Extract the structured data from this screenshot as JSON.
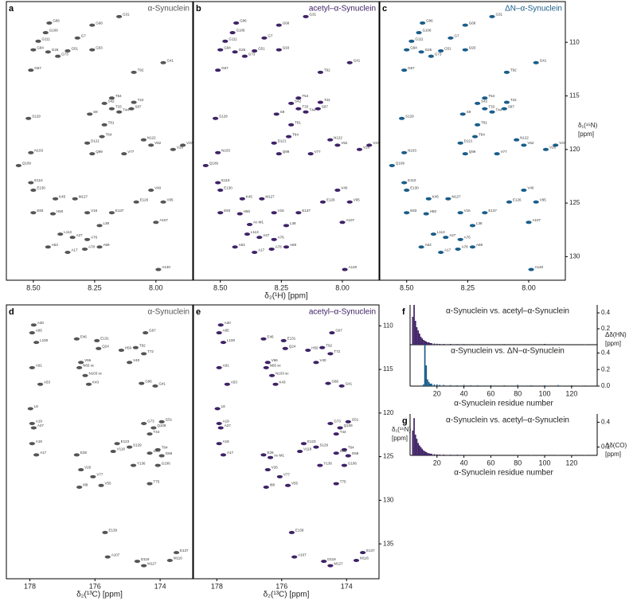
{
  "chart_data": [
    {
      "type": "scatter",
      "panel": "a",
      "title": "α-Synuclein",
      "color": "#555555",
      "xlim": [
        8.61,
        7.85
      ],
      "ylim": [
        106.2,
        132.2
      ],
      "xticks": [
        {
          "value": 8.5,
          "label": "8.50"
        },
        {
          "value": 8.25,
          "label": "8.25"
        },
        {
          "value": 8,
          "label": "8.00"
        }
      ],
      "labels": [
        "G86",
        "G106",
        "G7",
        "G111",
        "G84",
        "G25",
        "G51",
        "G73",
        "G93",
        "G68",
        "G31",
        "G67",
        "T92",
        "G41",
        "T54",
        "T22",
        "S42",
        "T33",
        "T44",
        "S87",
        "S129",
        "S9",
        "T81",
        "T64",
        "N122",
        "V52",
        "V37",
        "V26",
        "D121",
        "N103",
        "Q99",
        "V77",
        "Q109",
        "E110",
        "E130",
        "K45",
        "M127",
        "V40",
        "E126",
        "V95",
        "E83",
        "H50",
        "E137",
        "V16",
        "A107",
        "L113",
        "A27",
        "A76",
        "L38",
        "A53",
        "A17",
        "A78",
        "A69",
        "A140"
      ],
      "x": [
        8.435,
        8.45,
        8.32,
        8.48,
        8.5,
        8.44,
        8.36,
        8.4,
        8.26,
        8.26,
        8.15,
        8.51,
        8.09,
        7.97,
        8.18,
        8.09,
        8.21,
        8.18,
        8.15,
        8.1,
        8.52,
        8.27,
        8.21,
        8.22,
        8.05,
        8.02,
        7.89,
        7.93,
        8.28,
        8.51,
        8.26,
        8.13,
        8.56,
        8.51,
        8.5,
        8.41,
        8.33,
        8.02,
        8.08,
        7.97,
        8.5,
        8.42,
        8.18,
        8.28,
        8.0,
        8.39,
        8.34,
        8.28,
        8.23,
        8.44,
        8.36,
        8.29,
        8.23,
        7.99
      ],
      "values": [
        108.2,
        109.1,
        109.6,
        109.9,
        110.7,
        110.9,
        110.8,
        111.3,
        110.7,
        108.4,
        107.6,
        112.6,
        112.8,
        111.9,
        115.2,
        115.6,
        115.7,
        116.2,
        116.5,
        116.2,
        117.1,
        116.7,
        117.7,
        118.8,
        119.1,
        119.6,
        119.6,
        120.0,
        119.4,
        120.3,
        120.4,
        120.4,
        121.5,
        123.1,
        123.8,
        124.6,
        124.6,
        123.8,
        124.9,
        124.9,
        125.9,
        126.0,
        125.9,
        125.9,
        126.8,
        127.9,
        128.2,
        128.4,
        127.1,
        129.1,
        129.6,
        129.3,
        129.1,
        131.2
      ]
    },
    {
      "type": "scatter",
      "panel": "b",
      "title": "acetyl–α-Synuclein",
      "color": "#3f2266",
      "xlim": [
        8.61,
        7.85
      ],
      "ylim": [
        106.2,
        132.2
      ],
      "xlabel": "δ₂(¹H) [ppm]",
      "xticks": [
        {
          "value": 8.5,
          "label": "8.50"
        },
        {
          "value": 8.25,
          "label": "8.25"
        },
        {
          "value": 8,
          "label": "8.00"
        }
      ],
      "labels": [
        "G86",
        "G106",
        "G7",
        "G111",
        "G84",
        "G25",
        "G51",
        "G73",
        "G93",
        "G68",
        "G31",
        "G67",
        "T92",
        "G41",
        "T54",
        "T22",
        "S42",
        "T33",
        "T44",
        "S87",
        "S129",
        "S9",
        "T81",
        "T64",
        "N122",
        "V52",
        "V37",
        "V26",
        "D121",
        "N103",
        "Q99",
        "V77",
        "Q109",
        "E110",
        "E130",
        "K45",
        "M127",
        "V40",
        "E126",
        "V95",
        "E83",
        "H50",
        "E137",
        "V16",
        "A107",
        "L113",
        "A27",
        "A76",
        "L38",
        "A53",
        "A17",
        "A78",
        "A69",
        "A140",
        "Ac-M1"
      ],
      "x": [
        8.435,
        8.45,
        8.32,
        8.48,
        8.5,
        8.44,
        8.36,
        8.4,
        8.26,
        8.26,
        8.15,
        8.51,
        8.09,
        7.97,
        8.18,
        8.09,
        8.21,
        8.18,
        8.15,
        8.1,
        8.52,
        8.27,
        8.21,
        8.22,
        8.05,
        8.02,
        7.89,
        7.93,
        8.28,
        8.51,
        8.26,
        8.13,
        8.56,
        8.51,
        8.5,
        8.41,
        8.33,
        8.02,
        8.08,
        7.97,
        8.5,
        8.42,
        8.18,
        8.28,
        8.0,
        8.39,
        8.34,
        8.28,
        8.23,
        8.44,
        8.36,
        8.29,
        8.23,
        7.99,
        8.38
      ],
      "values": [
        108.2,
        109.1,
        109.6,
        109.9,
        110.7,
        110.9,
        110.8,
        111.3,
        110.7,
        108.4,
        107.6,
        112.6,
        112.8,
        111.9,
        115.2,
        115.6,
        115.7,
        116.2,
        116.5,
        116.2,
        117.1,
        116.7,
        117.7,
        118.8,
        119.1,
        119.6,
        119.6,
        120.0,
        119.4,
        120.3,
        120.4,
        120.4,
        121.5,
        123.1,
        123.8,
        124.6,
        124.6,
        123.8,
        124.9,
        124.9,
        125.9,
        126.0,
        125.9,
        125.9,
        126.8,
        127.9,
        128.2,
        128.4,
        127.1,
        129.1,
        129.6,
        129.3,
        129.1,
        131.2,
        127.0
      ]
    },
    {
      "type": "scatter",
      "panel": "c",
      "title": "ΔN–α-Synuclein",
      "color": "#1a5d8a",
      "xlim": [
        8.61,
        7.85
      ],
      "ylim": [
        106.2,
        132.2
      ],
      "ylabel": [
        "δ₁(¹⁵N)",
        "[ppm]"
      ],
      "xticks": [
        {
          "value": 8.5,
          "label": "8.50"
        },
        {
          "value": 8.25,
          "label": "8.25"
        },
        {
          "value": 8,
          "label": "8.00"
        }
      ],
      "yticks": [
        110,
        115,
        120,
        125,
        130
      ],
      "labels": [
        "G86",
        "G106",
        "G7",
        "G111",
        "G84",
        "G25",
        "G51",
        "G73",
        "G93",
        "G68",
        "G31",
        "G67",
        "T92",
        "G41",
        "T54",
        "T22",
        "S42",
        "T33",
        "T44",
        "S87",
        "S129",
        "S9",
        "T81",
        "T64",
        "N122",
        "V52",
        "V37",
        "V26",
        "D121",
        "N103",
        "Q99",
        "V77",
        "Q109",
        "E110",
        "E130",
        "K45",
        "M127",
        "V40",
        "E126",
        "V95",
        "E83",
        "H50",
        "E137",
        "V16",
        "A107",
        "L113",
        "A27",
        "A76",
        "L38",
        "A53",
        "A17",
        "A78",
        "A69",
        "A140"
      ],
      "x": [
        8.435,
        8.45,
        8.32,
        8.48,
        8.5,
        8.44,
        8.36,
        8.4,
        8.26,
        8.26,
        8.15,
        8.51,
        8.09,
        7.97,
        8.18,
        8.09,
        8.21,
        8.18,
        8.15,
        8.1,
        8.52,
        8.27,
        8.21,
        8.22,
        8.05,
        8.02,
        7.89,
        7.93,
        8.28,
        8.51,
        8.26,
        8.13,
        8.56,
        8.51,
        8.5,
        8.41,
        8.33,
        8.02,
        8.08,
        7.97,
        8.5,
        8.42,
        8.18,
        8.28,
        8.0,
        8.39,
        8.34,
        8.28,
        8.23,
        8.44,
        8.36,
        8.29,
        8.23,
        7.99
      ],
      "values": [
        108.2,
        109.1,
        109.6,
        109.9,
        110.7,
        110.9,
        110.8,
        111.3,
        110.7,
        108.4,
        107.6,
        112.6,
        112.8,
        111.9,
        115.2,
        115.6,
        115.7,
        116.2,
        116.5,
        116.2,
        117.1,
        116.7,
        117.7,
        118.8,
        119.1,
        119.6,
        119.6,
        120.0,
        119.4,
        120.3,
        120.4,
        120.4,
        121.5,
        123.1,
        123.8,
        124.6,
        124.6,
        123.8,
        124.9,
        124.9,
        125.9,
        126.0,
        125.9,
        125.9,
        126.8,
        127.9,
        128.2,
        128.4,
        127.1,
        129.1,
        129.6,
        129.3,
        129.1,
        131.2
      ]
    },
    {
      "type": "scatter",
      "panel": "d",
      "title": "α-Synuclein",
      "color": "#555555",
      "xlim": [
        178.72,
        173.0
      ],
      "ylim": [
        107.6,
        139.0
      ],
      "xlabel": "δ₂(¹³C) [ppm]",
      "xticks": [
        178,
        176,
        174
      ],
      "labels": [
        "A30",
        "A85",
        "G67",
        "L100",
        "E46",
        "E131",
        "Q24",
        "H50",
        "T92",
        "T72",
        "V66",
        "A91",
        "N65 sc",
        "N103 sc",
        "V40",
        "A53",
        "K43",
        "G86",
        "G41",
        "L8",
        "A19",
        "A27",
        "G73",
        "G51",
        "Q109",
        "T44",
        "E123",
        "S129",
        "T64",
        "G84",
        "G68",
        "G106",
        "A18",
        "A17",
        "E28",
        "V118",
        "Y136",
        "V26",
        "V77",
        "V55",
        "I88",
        "T75",
        "E139",
        "A107",
        "D119",
        "E137",
        "M116",
        "M127"
      ],
      "x": [
        177.88,
        177.93,
        174.45,
        177.8,
        176.56,
        175.94,
        175.89,
        175.19,
        174.75,
        174.5,
        176.43,
        177.93,
        176.48,
        176.3,
        174.94,
        177.68,
        176.19,
        174.57,
        174.15,
        177.98,
        177.93,
        177.88,
        174.5,
        173.95,
        174.2,
        174.32,
        175.32,
        174.94,
        174.07,
        174.32,
        173.95,
        174.07,
        177.93,
        177.8,
        176.56,
        175.44,
        174.82,
        176.43,
        176.06,
        175.81,
        176.48,
        174.32,
        175.69,
        175.61,
        174.7,
        173.5,
        173.7,
        174.5
      ],
      "values": [
        109.9,
        110.8,
        110.8,
        111.9,
        111.5,
        111.7,
        112.6,
        112.8,
        112.5,
        113.2,
        114.2,
        114.8,
        114.8,
        115.7,
        114.2,
        116.7,
        116.7,
        116.6,
        116.9,
        119.5,
        121.2,
        121.7,
        121.2,
        121.0,
        121.7,
        122.4,
        123.5,
        123.9,
        124.2,
        124.6,
        124.9,
        126.0,
        123.5,
        124.8,
        124.8,
        124.4,
        126.0,
        126.5,
        127.3,
        128.3,
        128.5,
        128.1,
        133.7,
        136.5,
        137.0,
        136.0,
        136.9,
        137.5
      ]
    },
    {
      "type": "scatter",
      "panel": "e",
      "title": "acetyl–α-Synuclein",
      "color": "#3f2266",
      "xlim": [
        178.72,
        173.0
      ],
      "ylim": [
        107.6,
        139.0
      ],
      "xlabel": "δ₂(¹³C) [ppm]",
      "xticks": [
        178,
        176,
        174
      ],
      "ylabel": [
        "δ₁(¹⁵N)",
        "[ppm]"
      ],
      "yticks": [
        110,
        115,
        120,
        125,
        130,
        135
      ],
      "labels": [
        "A30",
        "A85",
        "G67",
        "L100",
        "E46",
        "E131",
        "Q24",
        "H50",
        "T92",
        "T72",
        "V66",
        "A91",
        "N65 sc",
        "N103 sc",
        "V40",
        "A53",
        "K43",
        "G86",
        "G41",
        "L8",
        "A19",
        "A27",
        "G73",
        "G51",
        "Q109",
        "T44",
        "E123",
        "S129",
        "T64",
        "G84",
        "G68",
        "G106",
        "A18",
        "A17",
        "E28",
        "V118",
        "Y136",
        "V26",
        "V77",
        "V55",
        "I88",
        "T75",
        "E139",
        "A107",
        "D119",
        "E137",
        "M116",
        "M127",
        "Ac-M1"
      ],
      "x": [
        177.88,
        177.93,
        174.45,
        177.8,
        176.56,
        175.94,
        175.89,
        175.19,
        174.75,
        174.5,
        176.43,
        177.93,
        176.48,
        176.3,
        174.94,
        177.68,
        176.19,
        174.57,
        174.15,
        177.98,
        177.93,
        177.88,
        174.5,
        173.95,
        174.2,
        174.32,
        175.32,
        174.94,
        174.07,
        174.32,
        173.95,
        174.07,
        177.93,
        177.8,
        176.56,
        175.44,
        174.82,
        176.43,
        176.06,
        175.81,
        176.48,
        174.32,
        175.69,
        175.61,
        174.7,
        173.5,
        173.7,
        174.5,
        176.35
      ],
      "values": [
        109.9,
        110.8,
        110.8,
        111.9,
        111.5,
        111.7,
        112.6,
        112.8,
        112.5,
        113.2,
        114.2,
        114.8,
        114.8,
        115.7,
        114.2,
        116.7,
        116.7,
        116.6,
        116.9,
        119.5,
        121.2,
        121.7,
        121.2,
        121.0,
        121.7,
        122.4,
        123.5,
        123.9,
        124.2,
        124.6,
        124.9,
        126.0,
        123.5,
        124.8,
        124.8,
        124.4,
        126.0,
        126.5,
        127.3,
        128.3,
        128.5,
        128.1,
        133.7,
        136.5,
        137.0,
        136.0,
        136.9,
        137.5,
        125.1
      ]
    },
    {
      "type": "bar",
      "panel": "f",
      "title": "α-Synuclein vs. acetyl–α-Synuclein",
      "color": "#3f2266",
      "xlim": [
        0,
        139
      ],
      "ylim": [
        0,
        0.5
      ],
      "yticks": [
        0.4,
        0.2
      ],
      "ylabel": [
        "Δδ(HN)",
        "[ppm]"
      ],
      "x": [
        2,
        3,
        4,
        5,
        6,
        7,
        8,
        9,
        10,
        11,
        12,
        13,
        14,
        15,
        16,
        18,
        20,
        22,
        25,
        30,
        35,
        40,
        50,
        60,
        70,
        80,
        90,
        100,
        110,
        120,
        130
      ],
      "values": [
        0.35,
        0.5,
        0.3,
        0.22,
        0.18,
        0.14,
        0.1,
        0.08,
        0.06,
        0.05,
        0.04,
        0.03,
        0.03,
        0.02,
        0.02,
        0.015,
        0.012,
        0.01,
        0.01,
        0.01,
        0.008,
        0.008,
        0.006,
        0.006,
        0.008,
        0.006,
        0.006,
        0.01,
        0.006,
        0.006,
        0.005
      ]
    },
    {
      "type": "bar",
      "title": "α-Synuclein vs. ΔN–α-Synuclein",
      "color": "#1a5d8a",
      "xlim": [
        0,
        139
      ],
      "ylim": [
        0,
        0.5
      ],
      "yticks": [
        0.4,
        0.2,
        {
          "value": 0,
          "label": "0.0"
        }
      ],
      "xticks": [
        20,
        40,
        60,
        80,
        100,
        120
      ],
      "xlabel": "α-Synuclein residue number",
      "x": [
        10,
        11,
        12,
        13,
        14,
        15,
        16,
        18,
        20,
        22,
        25,
        30,
        35,
        40,
        45,
        50,
        60,
        70,
        80,
        90,
        100,
        110,
        120,
        130
      ],
      "values": [
        0.02,
        0.5,
        0.25,
        0.08,
        0.05,
        0.03,
        0.03,
        0.02,
        0.02,
        0.015,
        0.015,
        0.012,
        0.01,
        0.015,
        0.01,
        0.01,
        0.012,
        0.01,
        0.015,
        0.01,
        0.01,
        0.012,
        0.01,
        0.008
      ]
    },
    {
      "type": "bar",
      "panel": "g",
      "title": "α-Synuclein vs. acetyl–α-Synuclein",
      "color": "#3f2266",
      "xlim": [
        0,
        139
      ],
      "ylim": [
        0,
        0.5
      ],
      "yticks": [
        0.4,
        0.1
      ],
      "ylabel": [
        "Δδ(CO)",
        "[ppm]"
      ],
      "xticks": [
        20,
        40,
        60,
        80,
        100,
        120
      ],
      "xlabel": "α-Synuclein residue number",
      "x": [
        2,
        3,
        4,
        5,
        6,
        7,
        8,
        9,
        10,
        11,
        12,
        13,
        14,
        15,
        16,
        18,
        20,
        22,
        25,
        30,
        35,
        40,
        50,
        60,
        70,
        80,
        90,
        100,
        110,
        120,
        130
      ],
      "values": [
        0.3,
        0.45,
        0.25,
        0.2,
        0.15,
        0.12,
        0.1,
        0.08,
        0.06,
        0.05,
        0.04,
        0.03,
        0.025,
        0.02,
        0.02,
        0.015,
        0.012,
        0.01,
        0.01,
        0.008,
        0.008,
        0.006,
        0.006,
        0.005,
        0.006,
        0.005,
        0.005,
        0.006,
        0.005,
        0.005,
        0.005
      ]
    }
  ]
}
